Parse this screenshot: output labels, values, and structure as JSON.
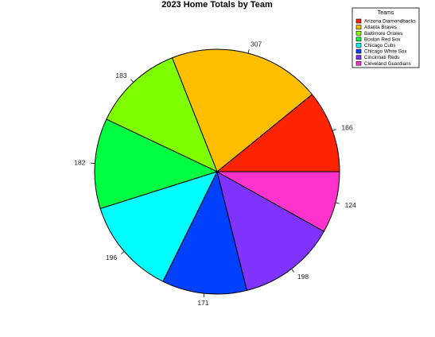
{
  "chart_data": {
    "type": "pie",
    "title": "2023 Home Totals by Team",
    "categories": [
      "Arizona Diamondbacks",
      "Atlanta Braves",
      "Baltimore Orioles",
      "Boston Red Sox",
      "Chicago Cubs",
      "Chicago White Sox",
      "Cincinnati Reds",
      "Cleveland Guardians"
    ],
    "values": [
      166,
      307,
      183,
      182,
      196,
      171,
      198,
      124
    ],
    "colors": [
      "#ff2400",
      "#ffbf00",
      "#80ff00",
      "#00ff40",
      "#00ffff",
      "#0040ff",
      "#8033ff",
      "#ff33cc"
    ],
    "legend": {
      "title": "Teams",
      "position": "top-right"
    },
    "start_angle_deg": 0,
    "direction": "counterclockwise"
  }
}
